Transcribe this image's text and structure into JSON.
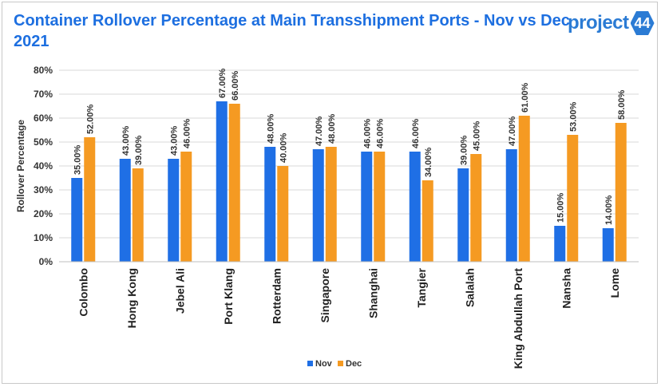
{
  "header": {
    "title": "Container Rollover Percentage at Main Transshipment Ports - Nov vs Dec 2021",
    "logo_text": "project",
    "logo_badge": "44"
  },
  "colors": {
    "nov": "#1f6fe5",
    "dec": "#f59a22",
    "title": "#1d6fe0",
    "grid": "#d9d9d9"
  },
  "chart_data": {
    "type": "bar",
    "title": "Container Rollover Percentage at Main Transshipment Ports - Nov vs Dec 2021",
    "xlabel": "",
    "ylabel": "Rollover Percentage",
    "ylim": [
      0,
      80
    ],
    "yticks": [
      0,
      10,
      20,
      30,
      40,
      50,
      60,
      70,
      80
    ],
    "ytick_labels": [
      "0%",
      "10%",
      "20%",
      "30%",
      "40%",
      "50%",
      "60%",
      "70%",
      "80%"
    ],
    "grid": true,
    "legend_position": "bottom",
    "categories": [
      "Colombo",
      "Hong Kong",
      "Jebel Ali",
      "Port Klang",
      "Rotterdam",
      "Singapore",
      "Shanghai",
      "Tangier",
      "Salalah",
      "King Abdullah Port",
      "Nansha",
      "Lome"
    ],
    "series": [
      {
        "name": "Nov",
        "values": [
          35,
          43,
          43,
          67,
          48,
          47,
          46,
          46,
          39,
          47,
          15,
          14
        ],
        "labels": [
          "35.00%",
          "43.00%",
          "43.00%",
          "67.00%",
          "48.00%",
          "47.00%",
          "46.00%",
          "46.00%",
          "39.00%",
          "47.00%",
          "15.00%",
          "14.00%"
        ]
      },
      {
        "name": "Dec",
        "values": [
          52,
          39,
          46,
          66,
          40,
          48,
          46,
          34,
          45,
          61,
          53,
          58
        ],
        "labels": [
          "52.00%",
          "39.00%",
          "46.00%",
          "66.00%",
          "40.00%",
          "48.00%",
          "46.00%",
          "34.00%",
          "45.00%",
          "61.00%",
          "53.00%",
          "58.00%"
        ]
      }
    ]
  }
}
